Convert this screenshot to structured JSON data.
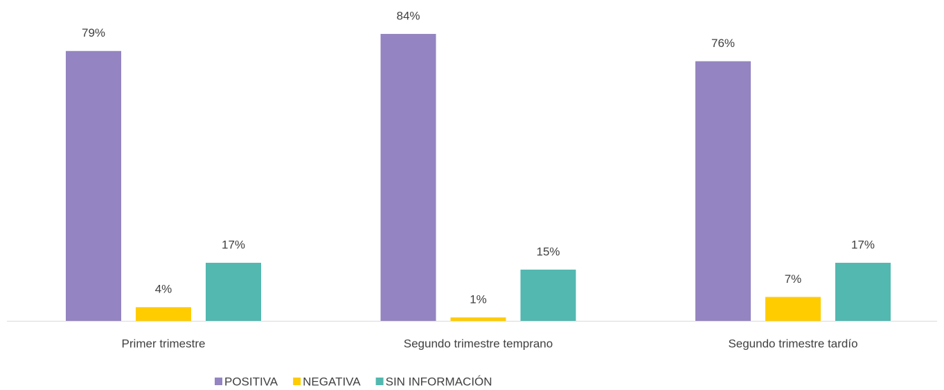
{
  "chart_data": {
    "type": "bar",
    "categories": [
      "Primer trimestre",
      "Segundo trimestre temprano",
      "Segundo trimestre tardío"
    ],
    "series": [
      {
        "name": "POSITIVA",
        "color": "#9484c1",
        "values": [
          79,
          84,
          76
        ],
        "value_labels": [
          "79%",
          "84%",
          "76%"
        ]
      },
      {
        "name": "NEGATIVA",
        "color": "#ffcc00",
        "values": [
          4,
          1,
          7
        ],
        "value_labels": [
          "4%",
          "1%",
          "7%"
        ]
      },
      {
        "name": "SIN INFORMACIÓN",
        "color": "#52b8b0",
        "values": [
          17,
          15,
          17
        ],
        "value_labels": [
          "17%",
          "15%",
          "17%"
        ]
      }
    ]
  }
}
